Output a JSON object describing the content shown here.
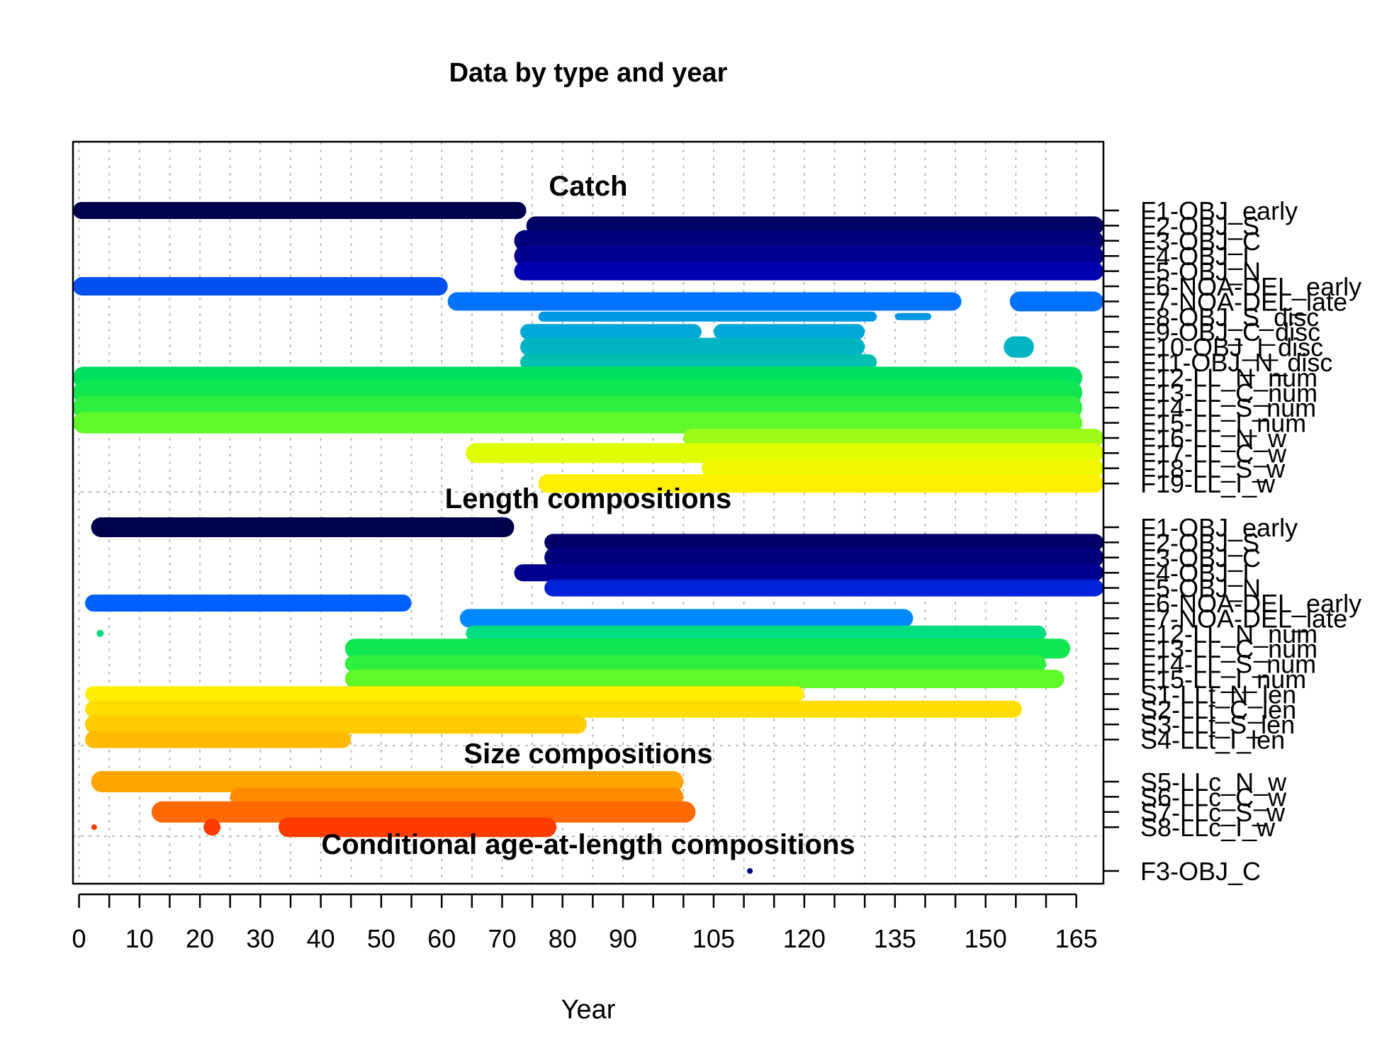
{
  "chart_data": {
    "type": "scatter",
    "title": "Data by type and year",
    "xlabel": "Year",
    "ylabel": "",
    "xlim": [
      -1,
      169.5
    ],
    "x_ticks": [
      0,
      5,
      10,
      15,
      20,
      25,
      30,
      35,
      40,
      45,
      50,
      55,
      60,
      65,
      70,
      75,
      80,
      85,
      90,
      95,
      100,
      105,
      110,
      115,
      120,
      125,
      130,
      135,
      140,
      145,
      150,
      155,
      160,
      165
    ],
    "x_tick_labels": [
      "0",
      "10",
      "20",
      "30",
      "40",
      "50",
      "60",
      "70",
      "80",
      "90",
      "105",
      "120",
      "135",
      "150",
      "165"
    ],
    "x_tick_label_values": [
      0,
      10,
      20,
      30,
      40,
      50,
      60,
      70,
      80,
      90,
      105,
      120,
      135,
      150,
      165
    ],
    "grid": true,
    "sections": [
      {
        "title": "Catch",
        "fleets": [
          {
            "label": "F1-OBJ_early",
            "color": "#00004D",
            "segments": [
              [
                -1,
                74,
                24
              ]
            ]
          },
          {
            "label": "F2-OBJ_S",
            "color": "#000066",
            "segments": [
              [
                74,
                169.5,
                26
              ]
            ]
          },
          {
            "label": "F3-OBJ_C",
            "color": "#00007A",
            "segments": [
              [
                72,
                169.5,
                30
              ]
            ]
          },
          {
            "label": "F4-OBJ_I",
            "color": "#00008E",
            "segments": [
              [
                72,
                169.5,
                30
              ]
            ]
          },
          {
            "label": "F5-OBJ_N",
            "color": "#0000B0",
            "segments": [
              [
                72,
                169.5,
                26
              ]
            ]
          },
          {
            "label": "F6-NOA-DEL_early",
            "color": "#0050F0",
            "segments": [
              [
                -1,
                61,
                26
              ]
            ]
          },
          {
            "label": "F7-NOA-DEL_late",
            "color": "#0072FF",
            "segments": [
              [
                61,
                146,
                26
              ],
              [
                154,
                169.5,
                28
              ]
            ]
          },
          {
            "label": "F8-OBJ_S_disc",
            "color": "#0096E6",
            "segments": [
              [
                76,
                132,
                14
              ],
              [
                135,
                141,
                10
              ]
            ]
          },
          {
            "label": "F9-OBJ_C_disc",
            "color": "#00A8D8",
            "segments": [
              [
                73,
                103,
                22
              ],
              [
                105,
                130,
                22
              ]
            ]
          },
          {
            "label": "F10-OBJ_I_disc",
            "color": "#00B4C4",
            "segments": [
              [
                73,
                130,
                26
              ],
              [
                153,
                158,
                30
              ]
            ]
          },
          {
            "label": "F11-OBJ_N_disc",
            "color": "#00BFB0",
            "segments": [
              [
                73,
                132,
                22
              ]
            ]
          },
          {
            "label": "F12-LL_N_num",
            "color": "#00E060",
            "segments": [
              [
                -1,
                166,
                30
              ]
            ]
          },
          {
            "label": "F13-LL_C_num",
            "color": "#10E650",
            "segments": [
              [
                -1,
                166,
                34
              ]
            ]
          },
          {
            "label": "F14-LL_S_num",
            "color": "#30EE40",
            "segments": [
              [
                -1,
                166,
                34
              ]
            ]
          },
          {
            "label": "F15-LL_I_num",
            "color": "#60F828",
            "segments": [
              [
                -1,
                166,
                30
              ]
            ]
          },
          {
            "label": "F16-LL_N_w",
            "color": "#9EFC18",
            "segments": [
              [
                100,
                169.5,
                26
              ]
            ]
          },
          {
            "label": "F17-LL_C_w",
            "color": "#E0FF00",
            "segments": [
              [
                64,
                169.5,
                28
              ]
            ]
          },
          {
            "label": "F18-LL_S_w",
            "color": "#F0F800",
            "segments": [
              [
                103,
                169.5,
                26
              ]
            ]
          },
          {
            "label": "F19-LL_I_w",
            "color": "#FFF000",
            "segments": [
              [
                76,
                169.5,
                26
              ]
            ]
          }
        ]
      },
      {
        "title": "Length compositions",
        "fleets": [
          {
            "label": "F1-OBJ_early",
            "color": "#00004D",
            "segments": [
              [
                2,
                72,
                28
              ]
            ]
          },
          {
            "label": "F2-OBJ_S",
            "color": "#000066",
            "segments": [
              [
                77,
                169.5,
                24
              ]
            ]
          },
          {
            "label": "F3-OBJ_C",
            "color": "#00007A",
            "segments": [
              [
                77,
                169.5,
                30
              ]
            ]
          },
          {
            "label": "F4-OBJ_I",
            "color": "#00008E",
            "segments": [
              [
                72,
                169.5,
                24
              ]
            ]
          },
          {
            "label": "F5-OBJ_N",
            "color": "#0022D8",
            "segments": [
              [
                77,
                169.5,
                24
              ]
            ]
          },
          {
            "label": "F6-NOA-DEL_early",
            "color": "#0060FF",
            "segments": [
              [
                1,
                55,
                24
              ]
            ]
          },
          {
            "label": "F7-NOA-DEL_late",
            "color": "#0088FF",
            "segments": [
              [
                63,
                138,
                26
              ]
            ]
          },
          {
            "label": "F12-LL_N_num",
            "color": "#00DD80",
            "segments": [
              [
                3.5,
                3.5,
                10
              ],
              [
                64,
                160,
                22
              ]
            ]
          },
          {
            "label": "F13-LL_C_num",
            "color": "#10E650",
            "segments": [
              [
                44,
                164,
                28
              ]
            ]
          },
          {
            "label": "F14-LL_S_num",
            "color": "#30EE40",
            "segments": [
              [
                44,
                160,
                24
              ]
            ]
          },
          {
            "label": "F15-LL_I_num",
            "color": "#60F828",
            "segments": [
              [
                44,
                163,
                26
              ]
            ]
          },
          {
            "label": "S1-LLt_N_len",
            "color": "#FFEE00",
            "segments": [
              [
                1,
                120,
                22
              ]
            ]
          },
          {
            "label": "S2-LLt_C_len",
            "color": "#FFDD00",
            "segments": [
              [
                1,
                156,
                24
              ]
            ]
          },
          {
            "label": "S3-LLt_S_len",
            "color": "#FFCC00",
            "segments": [
              [
                1,
                84,
                26
              ]
            ]
          },
          {
            "label": "S4-LLt_I_len",
            "color": "#FFBB00",
            "segments": [
              [
                1,
                45,
                24
              ]
            ]
          }
        ]
      },
      {
        "title": "Size compositions",
        "fleets": [
          {
            "label": "S5-LLc_N_w",
            "color": "#FFA500",
            "segments": [
              [
                2,
                100,
                30
              ]
            ]
          },
          {
            "label": "S6-LLc_C_w",
            "color": "#FF8C00",
            "segments": [
              [
                25,
                100,
                26
              ]
            ]
          },
          {
            "label": "S7-LLc_S_w",
            "color": "#FF6A00",
            "segments": [
              [
                12,
                102,
                30
              ]
            ]
          },
          {
            "label": "S8-LLc_I_w",
            "color": "#FF3C00",
            "segments": [
              [
                2.5,
                2.5,
                8
              ],
              [
                22,
                22,
                24
              ],
              [
                33,
                79,
                28
              ]
            ]
          }
        ]
      },
      {
        "title": "Conditional age-at-length compositions",
        "fleets": [
          {
            "label": "F3-OBJ_C",
            "color": "#00007A",
            "segments": [
              [
                111,
                111,
                8
              ]
            ]
          }
        ]
      }
    ]
  }
}
